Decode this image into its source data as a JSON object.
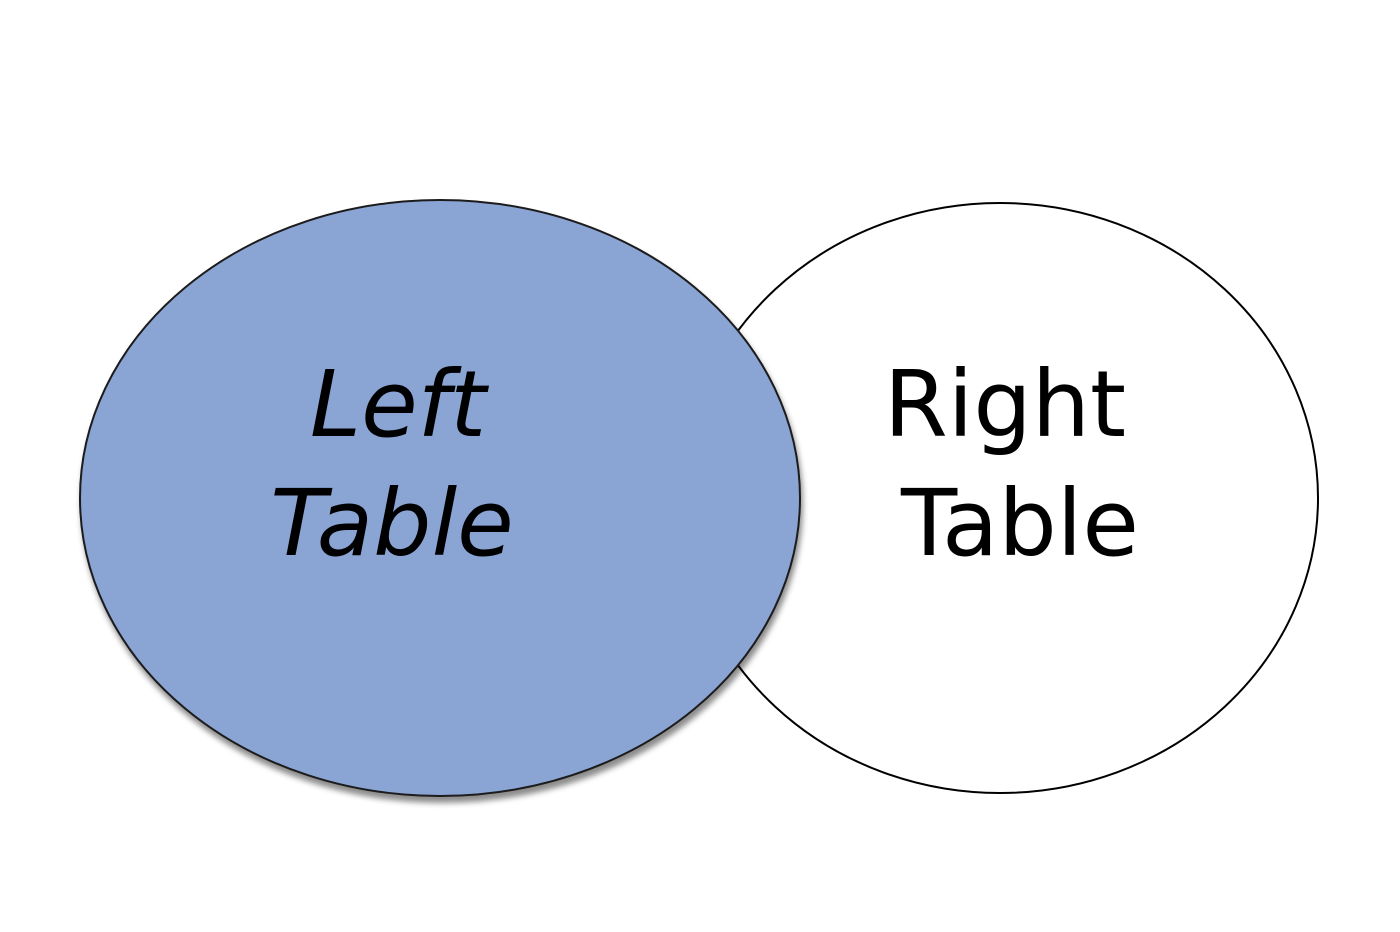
{
  "diagram": {
    "type": "venn",
    "left_set": {
      "line1": "Left",
      "line2": "Table",
      "fill_color": "#8aa4d4",
      "stroke_color": "#000000",
      "highlighted": true
    },
    "right_set": {
      "line1": "Right",
      "line2": "Table",
      "fill_color": "#ffffff",
      "stroke_color": "#000000",
      "highlighted": false
    }
  }
}
